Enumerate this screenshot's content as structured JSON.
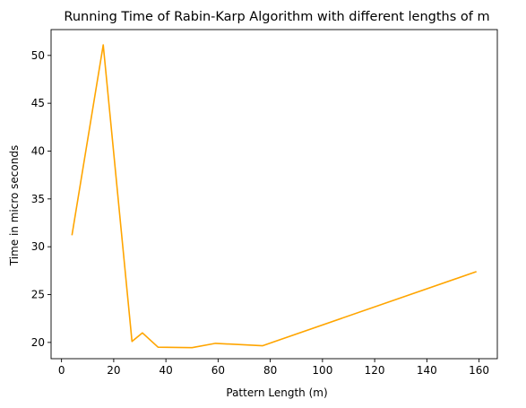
{
  "chart_data": {
    "type": "line",
    "title": "Running Time of Rabin-Karp Algorithm with different lengths of m",
    "xlabel": "Pattern Length (m)",
    "ylabel": "Time in micro seconds",
    "xlim": [
      -4,
      167
    ],
    "ylim": [
      18.3,
      52.7
    ],
    "x_ticks": [
      0,
      20,
      40,
      60,
      80,
      100,
      120,
      140,
      160
    ],
    "y_ticks": [
      20,
      25,
      30,
      35,
      40,
      45,
      50
    ],
    "grid": false,
    "series": [
      {
        "color": "#ffa500",
        "x": [
          4,
          16,
          27,
          31,
          37,
          50,
          59,
          77,
          159
        ],
        "y": [
          31.2,
          51.1,
          20.1,
          21.0,
          19.5,
          19.45,
          19.9,
          19.65,
          27.4
        ]
      }
    ]
  }
}
